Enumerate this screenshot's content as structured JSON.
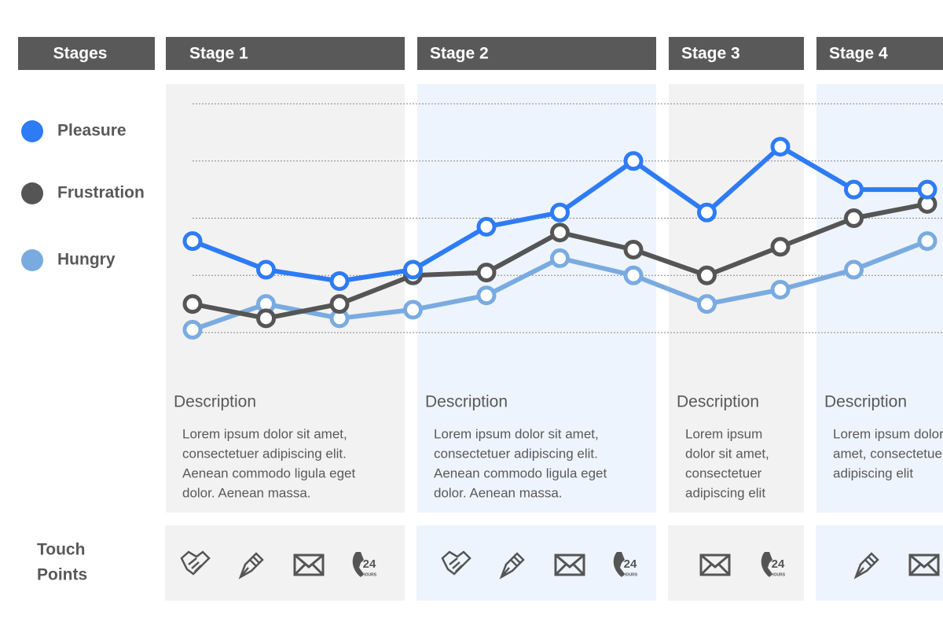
{
  "stages_label": "Stages",
  "touch_points_label": [
    "Touch",
    "Points"
  ],
  "icon_text": {
    "number": "24",
    "unit": "HOURS"
  },
  "stages": [
    {
      "name": "Stage 1",
      "heading": "Description",
      "text": [
        "Lorem ipsum dolor sit amet,",
        "consectetuer adipiscing elit.",
        "Aenean commodo ligula eget",
        "dolor. Aenean massa."
      ]
    },
    {
      "name": "Stage 2",
      "heading": "Description",
      "text": [
        "Lorem ipsum dolor sit amet,",
        "consectetuer adipiscing elit.",
        "Aenean commodo ligula eget",
        "dolor. Aenean massa."
      ]
    },
    {
      "name": "Stage 3",
      "heading": "Description",
      "text": [
        "Lorem ipsum",
        "dolor sit amet,",
        "consectetuer",
        "adipiscing elit"
      ]
    },
    {
      "name": "Stage 4",
      "heading": "Description",
      "text": [
        "Lorem ipsum dolor sit",
        "amet, consectetuer",
        "adipiscing elit"
      ]
    }
  ],
  "chart_data": {
    "type": "line",
    "categories": [
      null,
      null,
      null,
      null,
      null,
      null,
      null,
      null,
      null,
      null,
      null
    ],
    "ylim": [
      0,
      4
    ],
    "yticks": [
      0,
      1,
      2,
      3,
      4
    ],
    "grid": true,
    "series": [
      {
        "name": "Pleasure",
        "color": "#2e7bf6",
        "values": [
          1.6,
          1.1,
          0.9,
          1.1,
          1.85,
          2.1,
          3.0,
          2.1,
          3.25,
          2.5,
          2.5
        ]
      },
      {
        "name": "Frustration",
        "color": "#555555",
        "values": [
          0.5,
          0.25,
          0.5,
          1.0,
          1.05,
          1.75,
          1.45,
          1.0,
          1.5,
          2.0,
          2.25
        ]
      },
      {
        "name": "Hungry",
        "color": "#7aabe0",
        "values": [
          0.05,
          0.5,
          0.25,
          0.4,
          0.65,
          1.3,
          1.0,
          0.5,
          0.75,
          1.1,
          1.6
        ]
      }
    ]
  }
}
